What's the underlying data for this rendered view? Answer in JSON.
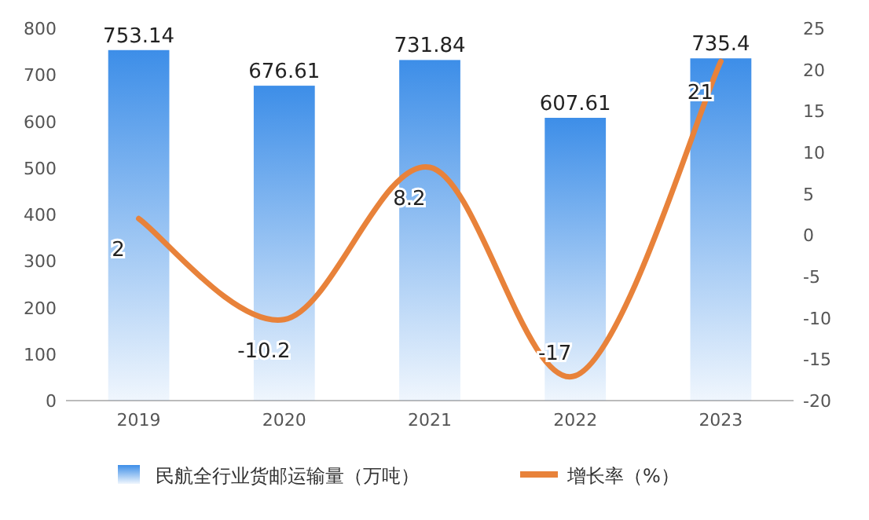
{
  "chart_data": {
    "type": "bar",
    "categories": [
      "2019",
      "2020",
      "2021",
      "2022",
      "2023"
    ],
    "series": [
      {
        "name": "民航全行业货邮运输量（万吨）",
        "color": "#3d8ee8",
        "values": [
          753.14,
          676.61,
          731.84,
          607.61,
          735.4
        ]
      },
      {
        "name": "增长率（%）",
        "type": "line",
        "axis": "y2",
        "color": "#e8823a",
        "values": [
          2,
          -10.2,
          8.2,
          -17,
          21
        ]
      }
    ],
    "ylim": [
      0,
      800
    ],
    "yticks": [
      0,
      100,
      200,
      300,
      400,
      500,
      600,
      700,
      800
    ],
    "y2lim": [
      -20,
      25
    ],
    "y2ticks": [
      -20,
      -15,
      -10,
      -5,
      0,
      5,
      10,
      15,
      20,
      25
    ],
    "data_labels": true,
    "legend": "bottom",
    "grid": false
  }
}
